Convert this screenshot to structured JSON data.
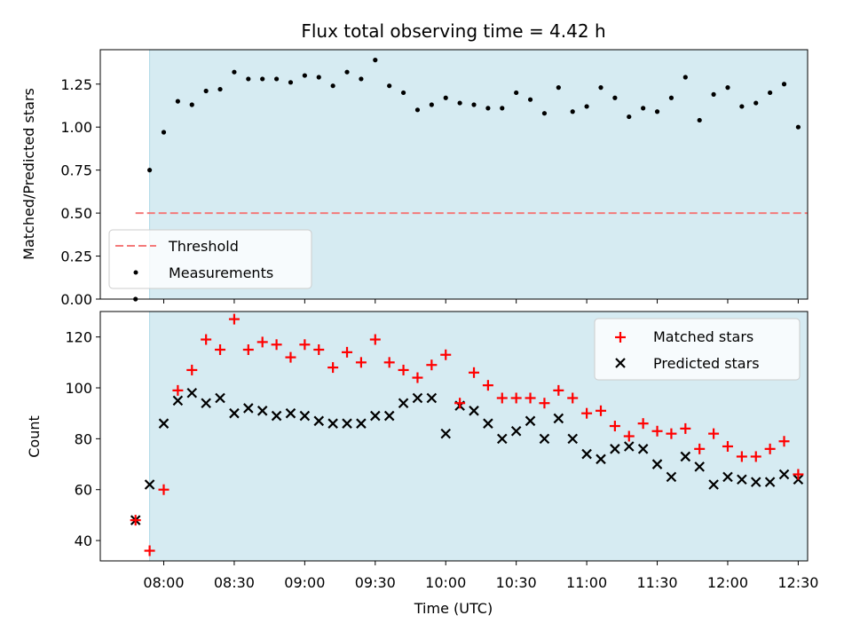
{
  "chart_data": [
    {
      "type": "scatter",
      "title": "Flux total observing time = 4.42 h",
      "xlabel": "",
      "ylabel": "Matched/Predicted stars",
      "ylim": [
        0,
        1.45
      ],
      "yticks": [
        "0.00",
        "0.25",
        "0.50",
        "0.75",
        "1.00",
        "1.25"
      ],
      "ytick_values": [
        0,
        0.25,
        0.5,
        0.75,
        1.0,
        1.25
      ],
      "xlim_minutes": [
        453,
        754
      ],
      "observing_window_minutes": [
        474,
        768
      ],
      "threshold": {
        "label": "Threshold",
        "value": 0.5,
        "x_range_minutes": [
          468,
          768
        ],
        "color": "#f47a7a"
      },
      "series": [
        {
          "name": "Measurements",
          "color": "#000000",
          "marker": "dot",
          "x_minutes": [
            468,
            474,
            480,
            486,
            492,
            498,
            504,
            510,
            516,
            522,
            528,
            534,
            540,
            546,
            552,
            558,
            564,
            570,
            576,
            582,
            588,
            594,
            600,
            606,
            612,
            618,
            624,
            630,
            636,
            642,
            648,
            654,
            660,
            666,
            672,
            678,
            684,
            690,
            696,
            702,
            708,
            714,
            720,
            726,
            732,
            738,
            744,
            750,
            756,
            762,
            768
          ],
          "values": [
            0.0,
            0.75,
            0.97,
            1.15,
            1.13,
            1.21,
            1.22,
            1.32,
            1.28,
            1.28,
            1.28,
            1.26,
            1.3,
            1.29,
            1.24,
            1.32,
            1.28,
            1.39,
            1.24,
            1.2,
            1.1,
            1.13,
            1.17,
            1.14,
            1.13,
            1.11,
            1.11,
            1.2,
            1.16,
            1.08,
            1.23,
            1.09,
            1.12,
            1.23,
            1.17,
            1.06,
            1.11,
            1.09,
            1.17,
            1.29,
            1.04,
            1.19,
            1.23,
            1.12,
            1.14,
            1.2,
            1.25,
            1.0,
            1.09,
            1.12,
            1.26
          ]
        }
      ],
      "legend": {
        "position": "lower-left",
        "entries": [
          "Threshold",
          "Measurements"
        ]
      }
    },
    {
      "type": "scatter",
      "title": "",
      "xlabel": "Time (UTC)",
      "ylabel": "Count",
      "ylim": [
        32,
        130
      ],
      "yticks": [
        "40",
        "60",
        "80",
        "100",
        "120"
      ],
      "ytick_values": [
        40,
        60,
        80,
        100,
        120
      ],
      "xticks": [
        "08:00",
        "08:30",
        "09:00",
        "09:30",
        "10:00",
        "10:30",
        "11:00",
        "11:30",
        "12:00",
        "12:30"
      ],
      "xtick_minutes": [
        480,
        510,
        540,
        570,
        600,
        630,
        660,
        690,
        720,
        750
      ],
      "xlim_minutes": [
        453,
        754
      ],
      "observing_window_minutes": [
        474,
        768
      ],
      "x_minutes": [
        468,
        474,
        480,
        486,
        492,
        498,
        504,
        510,
        516,
        522,
        528,
        534,
        540,
        546,
        552,
        558,
        564,
        570,
        576,
        582,
        588,
        594,
        600,
        606,
        612,
        618,
        624,
        630,
        636,
        642,
        648,
        654,
        660,
        666,
        672,
        678,
        684,
        690,
        696,
        702,
        708,
        714,
        720,
        726,
        732,
        738,
        744,
        750,
        756,
        762,
        768
      ],
      "series": [
        {
          "name": "Matched stars",
          "color": "#ff0000",
          "marker": "plus",
          "values": [
            48,
            36,
            60,
            99,
            107,
            119,
            115,
            127,
            115,
            118,
            117,
            112,
            117,
            115,
            108,
            114,
            110,
            119,
            110,
            107,
            104,
            109,
            113,
            94,
            106,
            101,
            96,
            96,
            96,
            94,
            99,
            96,
            90,
            91,
            85,
            81,
            86,
            83,
            82,
            84,
            76,
            82,
            77,
            73,
            73,
            76,
            79,
            66,
            70,
            70,
            69
          ]
        },
        {
          "name": "Predicted stars",
          "color": "#000000",
          "marker": "x",
          "values": [
            48,
            62,
            86,
            95,
            98,
            94,
            96,
            90,
            92,
            91,
            89,
            90,
            89,
            87,
            86,
            86,
            86,
            89,
            89,
            94,
            96,
            96,
            82,
            93,
            91,
            86,
            80,
            83,
            87,
            80,
            88,
            80,
            74,
            72,
            76,
            77,
            76,
            70,
            65,
            73,
            69,
            62,
            65,
            64,
            63,
            63,
            66,
            64,
            61,
            55,
            56
          ]
        }
      ],
      "extra_points": [
        {
          "series": "Matched stars",
          "x_minutes": [
            762,
            768
          ],
          "values": [
            67,
            64
          ]
        },
        {
          "series": "Predicted stars",
          "x_minutes": [
            762,
            768
          ],
          "values": [
            56,
            56
          ]
        }
      ],
      "legend": {
        "position": "top-right",
        "entries": [
          "Matched stars",
          "Predicted stars"
        ]
      }
    }
  ]
}
